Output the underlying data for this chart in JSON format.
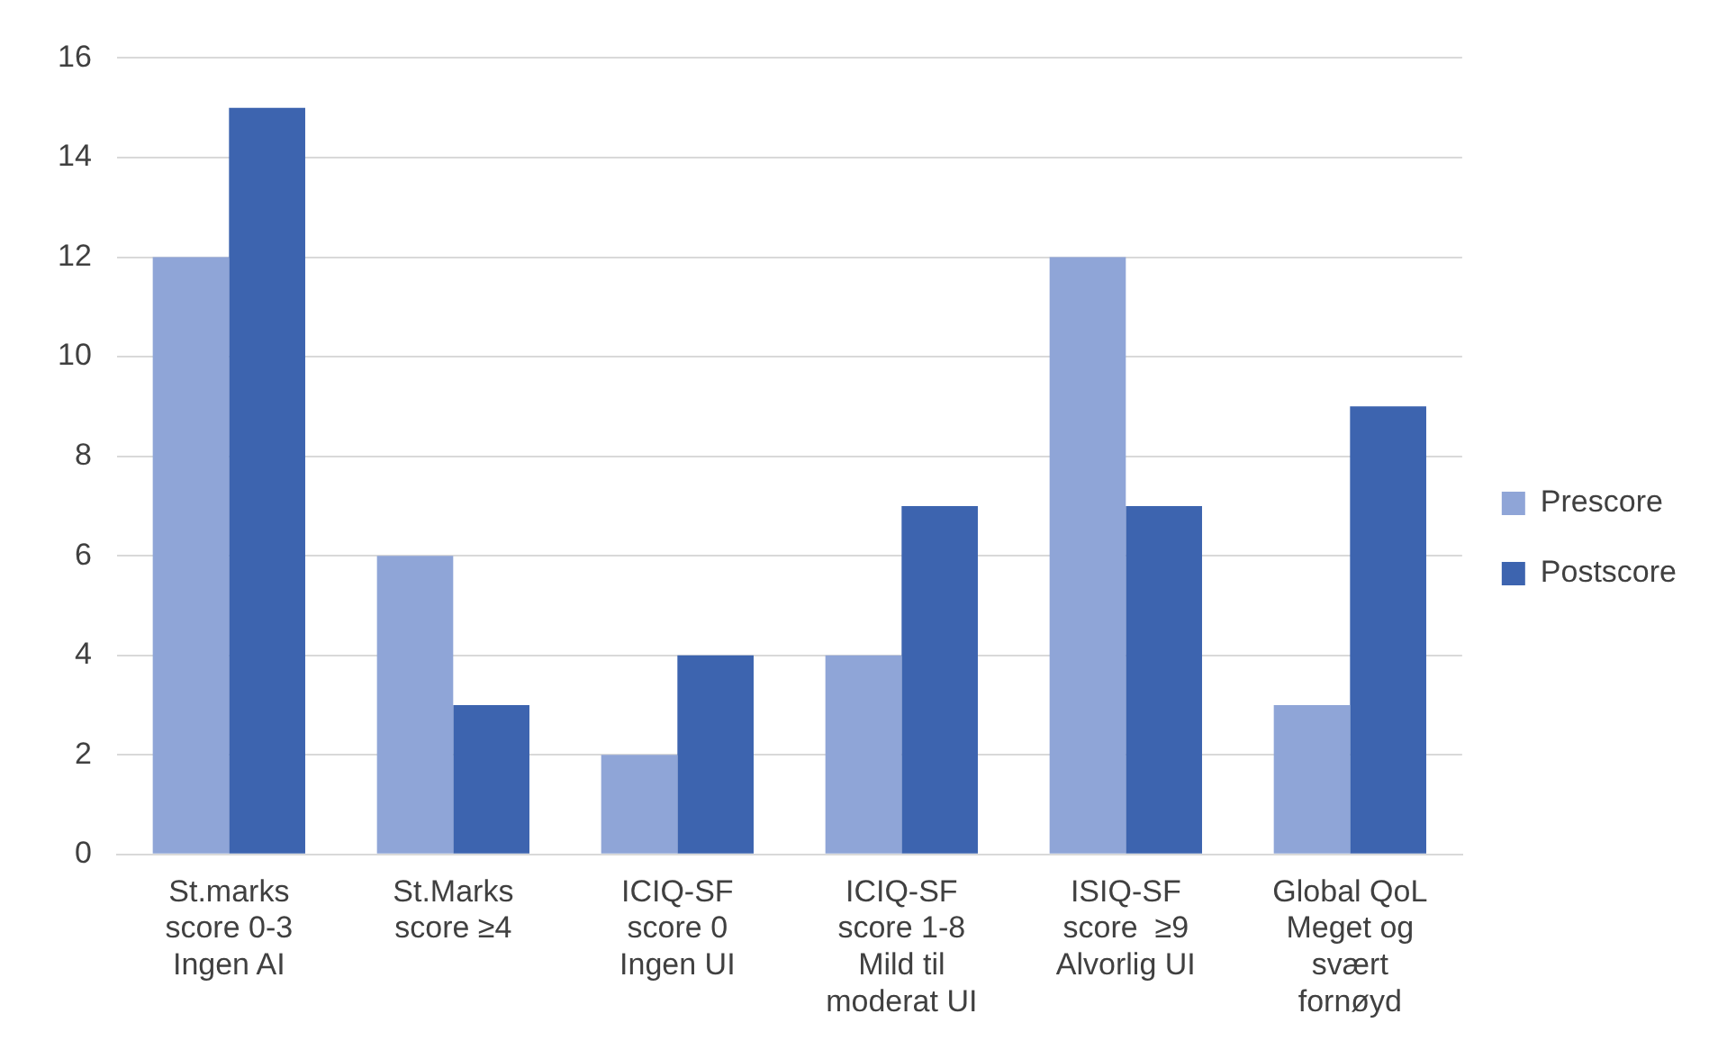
{
  "chart_data": {
    "type": "bar",
    "categories": [
      "St.marks\nscore 0-3\nIngen AI",
      "St.Marks\nscore ≥4",
      "ICIQ-SF\nscore 0\nIngen UI",
      "ICIQ-SF\nscore 1-8\nMild til\nmoderat UI",
      "ISIQ-SF\nscore  ≥9\nAlvorlig UI",
      "Global QoL\nMeget og\nsvært\nfornøyd"
    ],
    "series": [
      {
        "name": "Prescore",
        "color": "#8fa5d7",
        "values": [
          12,
          6,
          2,
          4,
          12,
          3
        ]
      },
      {
        "name": "Postscore",
        "color": "#3d64af",
        "values": [
          15,
          3,
          4,
          7,
          7,
          9
        ]
      }
    ],
    "ylim": [
      0,
      16
    ],
    "yticks": [
      0,
      2,
      4,
      6,
      8,
      10,
      12,
      14,
      16
    ],
    "grid": "y",
    "legend": "right"
  }
}
